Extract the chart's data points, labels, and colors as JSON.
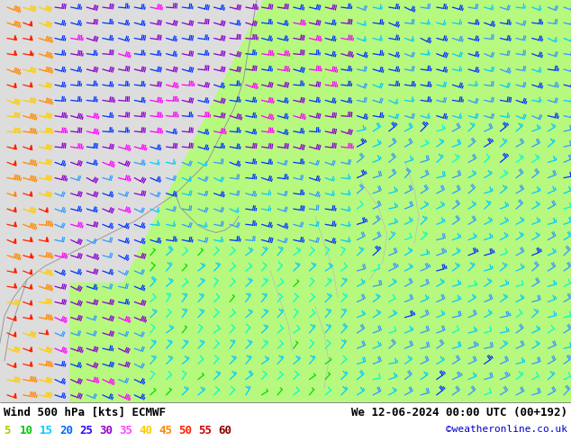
{
  "title_left": "Wind 500 hPa [kts] ECMWF",
  "title_right": "We 12-06-2024 00:00 UTC (00+192)",
  "copyright": "©weatheronline.co.uk",
  "legend_values": [
    5,
    10,
    15,
    20,
    25,
    30,
    35,
    40,
    45,
    50,
    55,
    60
  ],
  "legend_colors": [
    "#aacc00",
    "#00dd00",
    "#00ffcc",
    "#00ccff",
    "#2255ff",
    "#8800ff",
    "#ff00ff",
    "#ffcc00",
    "#ff8800",
    "#ff2200",
    "#cc0000",
    "#880000"
  ],
  "legend_colors_display": [
    "#aacc00",
    "#00cc00",
    "#00ccff",
    "#0088ff",
    "#4400ff",
    "#aa00ff",
    "#ff44ff",
    "#ffcc00",
    "#ff8800",
    "#ff3300",
    "#cc0000",
    "#880000"
  ],
  "bg_color": "#ffffff",
  "text_color": "#000000",
  "font_size_title": 9,
  "font_size_legend": 9,
  "fig_width": 6.34,
  "fig_height": 4.9,
  "dpi": 100
}
